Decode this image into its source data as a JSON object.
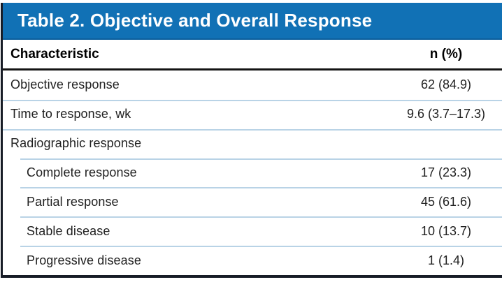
{
  "colors": {
    "title_bar_bg": "#1171B5",
    "row_separator": "#B9D3E6",
    "frame_border": "#171C26",
    "header_rule": "#141414",
    "title_text": "#FFFFFF",
    "body_text": "#212121"
  },
  "table": {
    "title": "Table 2. Objective and Overall Response",
    "columns": {
      "characteristic": "Characteristic",
      "value": "n (%)"
    },
    "rows": [
      {
        "label": "Objective response",
        "value": "62 (84.9)",
        "indent": false
      },
      {
        "label": "Time to response, wk",
        "value": "9.6 (3.7–17.3)",
        "indent": false
      },
      {
        "label": "Radiographic response",
        "value": "",
        "indent": false
      },
      {
        "label": "Complete response",
        "value": "17 (23.3)",
        "indent": true
      },
      {
        "label": "Partial response",
        "value": "45 (61.6)",
        "indent": true
      },
      {
        "label": "Stable disease",
        "value": "10 (13.7)",
        "indent": true
      },
      {
        "label": "Progressive disease",
        "value": "1 (1.4)",
        "indent": true
      }
    ]
  },
  "chart_data": {
    "type": "table",
    "title": "Table 2. Objective and Overall Response",
    "columns": [
      "Characteristic",
      "n (%)"
    ],
    "rows": [
      [
        "Objective response",
        "62 (84.9)"
      ],
      [
        "Time to response, wk",
        "9.6 (3.7–17.3)"
      ],
      [
        "Radiographic response",
        ""
      ],
      [
        "Complete response",
        "17 (23.3)"
      ],
      [
        "Partial response",
        "45 (61.6)"
      ],
      [
        "Stable disease",
        "10 (13.7)"
      ],
      [
        "Progressive disease",
        "1 (1.4)"
      ]
    ]
  }
}
